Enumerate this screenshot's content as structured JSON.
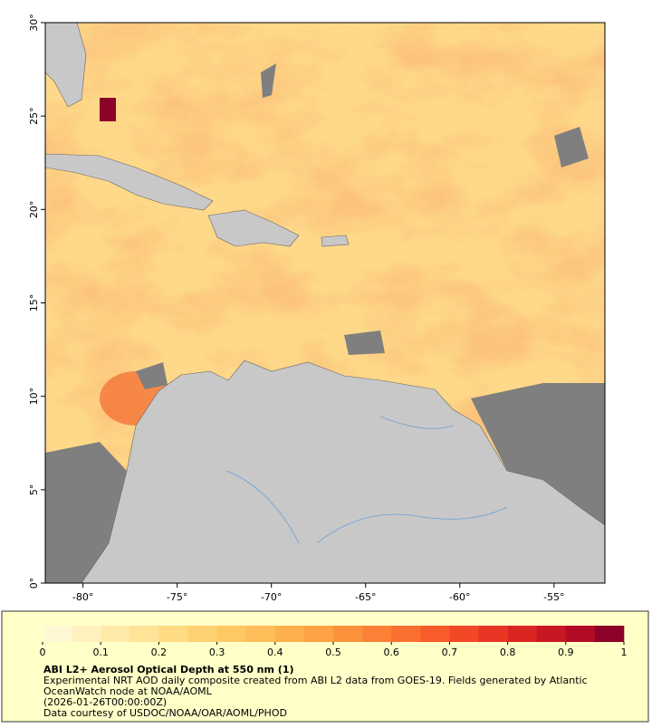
{
  "map": {
    "xlim": [
      -82,
      -52.3
    ],
    "ylim": [
      0,
      30
    ],
    "xticks": [
      {
        "value": -80,
        "label": "-80°"
      },
      {
        "value": -75,
        "label": "-75°"
      },
      {
        "value": -70,
        "label": "-70°"
      },
      {
        "value": -65,
        "label": "-65°"
      },
      {
        "value": -60,
        "label": "-60°"
      },
      {
        "value": -55,
        "label": "-55°"
      }
    ],
    "yticks": [
      {
        "value": 0,
        "label": "0°"
      },
      {
        "value": 5,
        "label": "5°"
      },
      {
        "value": 10,
        "label": "10°"
      },
      {
        "value": 15,
        "label": "15°"
      },
      {
        "value": 20,
        "label": "20°"
      },
      {
        "value": 25,
        "label": "25°"
      },
      {
        "value": 30,
        "label": "30°"
      }
    ]
  },
  "colorbar": {
    "title": "ABI L2+ Aerosol Optical Depth at 550 nm (1)",
    "lim": [
      0,
      1
    ],
    "ticks": [
      0,
      0.1,
      0.2,
      0.3,
      0.4,
      0.5,
      0.6,
      0.7,
      0.8,
      0.9,
      1
    ],
    "colors": [
      "#fff8d4",
      "#fff1bf",
      "#ffeaaa",
      "#ffe396",
      "#ffdb83",
      "#fed273",
      "#fec865",
      "#febd59",
      "#feb04e",
      "#fea245",
      "#fd923d",
      "#fc8136",
      "#fb6f30",
      "#f85c2b",
      "#f24827",
      "#e83524",
      "#db2522",
      "#c91623",
      "#b20b26",
      "#8c0228"
    ]
  },
  "caption": [
    "Experimental NRT AOD daily composite created from ABI L2 data from GOES-19. Fields generated by Atlantic",
    "OceanWatch node at NOAA/AOML",
    "(2026-01-26T00:00:00Z)",
    "Data courtesy of USDOC/NOAA/OAR/AOML/PHOD"
  ]
}
